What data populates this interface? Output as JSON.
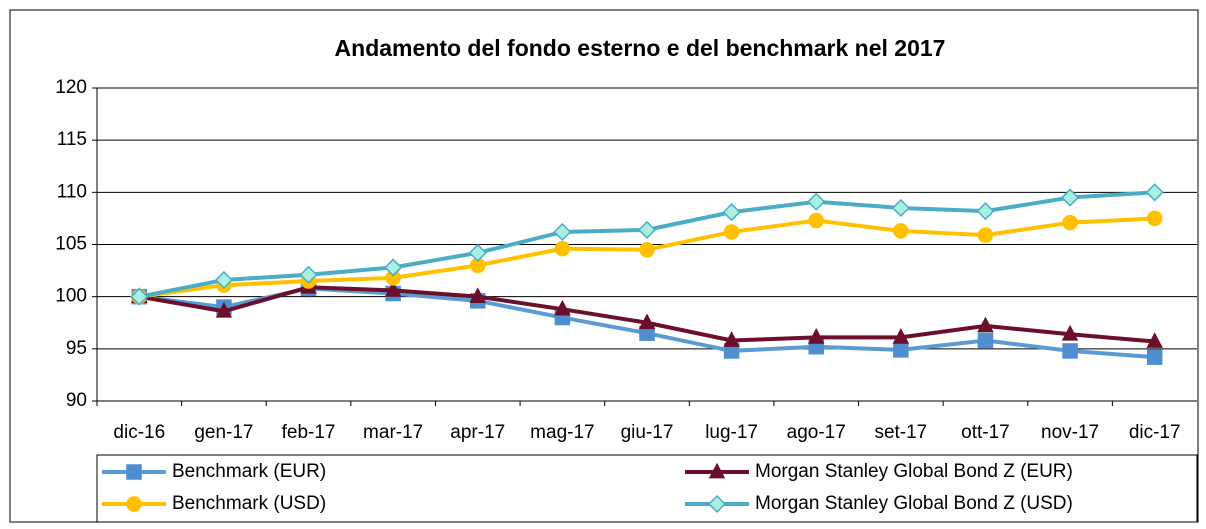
{
  "chart_data": {
    "type": "line",
    "title": "Andamento del fondo esterno e del benchmark nel 2017",
    "categories": [
      "dic-16",
      "gen-17",
      "feb-17",
      "mar-17",
      "apr-17",
      "mag-17",
      "giu-17",
      "lug-17",
      "ago-17",
      "set-17",
      "ott-17",
      "nov-17",
      "dic-17"
    ],
    "series": [
      {
        "name": "Benchmark (EUR)",
        "color": "#5b9bd5",
        "marker": "square",
        "marker_color": "#4f8fd0",
        "values": [
          100,
          99.0,
          100.8,
          100.3,
          99.6,
          98.0,
          96.5,
          94.8,
          95.2,
          94.9,
          95.8,
          94.8,
          94.2
        ]
      },
      {
        "name": "Morgan Stanley Global Bond Z (EUR)",
        "color": "#6b0f2b",
        "marker": "triangle",
        "marker_color": "#6b0f2b",
        "values": [
          100,
          98.6,
          100.9,
          100.6,
          100.0,
          98.8,
          97.5,
          95.8,
          96.1,
          96.1,
          97.2,
          96.4,
          95.7
        ]
      },
      {
        "name": "Benchmark (USD)",
        "color": "#ffc000",
        "marker": "circle",
        "marker_color": "#ffc000",
        "values": [
          100,
          101.1,
          101.5,
          101.8,
          103.0,
          104.6,
          104.5,
          106.2,
          107.3,
          106.3,
          105.9,
          107.1,
          107.5
        ]
      },
      {
        "name": "Morgan Stanley Global Bond Z (USD)",
        "color": "#4bacc6",
        "marker": "diamond",
        "marker_color": "#a8f0df",
        "values": [
          100,
          101.6,
          102.1,
          102.8,
          104.2,
          106.2,
          106.4,
          108.1,
          109.1,
          108.5,
          108.2,
          109.5,
          110.0
        ]
      }
    ],
    "ylim": [
      90,
      120
    ],
    "yticks": [
      90,
      95,
      100,
      105,
      110,
      115,
      120
    ],
    "grid": true
  }
}
